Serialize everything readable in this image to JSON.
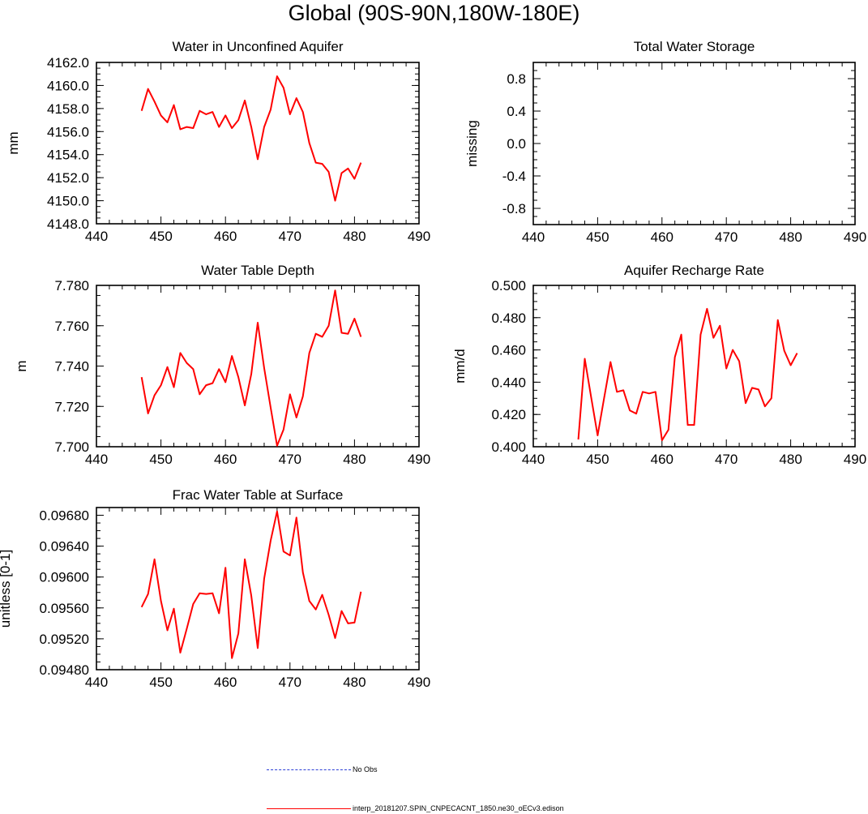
{
  "title": "Global (90S-90N,180W-180E)",
  "colors": {
    "series": "#ff0000",
    "obs": "#2b3fd6",
    "axis": "#000000"
  },
  "legend": [
    {
      "label": "No Obs",
      "color": "#2b3fd6",
      "style": "dashed"
    },
    {
      "label": "interp_20181207.SPIN_CNPECACNT_1850.ne30_oECv3.edison",
      "color": "#ff0000",
      "style": "solid"
    }
  ],
  "chart_data": [
    {
      "type": "line",
      "title": "Water in Unconfined Aquifer",
      "ylabel": "mm",
      "xlim": [
        440,
        490
      ],
      "ylim": [
        4148.0,
        4162.0
      ],
      "xticks": [
        440,
        450,
        460,
        470,
        480,
        490
      ],
      "yticks": [
        4148.0,
        4150.0,
        4152.0,
        4154.0,
        4156.0,
        4158.0,
        4160.0,
        4162.0
      ],
      "ytick_labels": [
        "4148.0",
        "4150.0",
        "4152.0",
        "4154.0",
        "4156.0",
        "4158.0",
        "4160.0",
        "4162.0"
      ],
      "series": [
        {
          "x": [
            447,
            448,
            449,
            450,
            451,
            452,
            453,
            454,
            455,
            456,
            457,
            458,
            459,
            460,
            461,
            462,
            463,
            464,
            465,
            466,
            467,
            468,
            469,
            470,
            471,
            472,
            473,
            474,
            475,
            476,
            477,
            478,
            479,
            480,
            481
          ],
          "values": [
            4157.8,
            4159.7,
            4158.6,
            4157.4,
            4156.8,
            4158.3,
            4156.2,
            4156.4,
            4156.3,
            4157.8,
            4157.5,
            4157.7,
            4156.4,
            4157.4,
            4156.3,
            4157.0,
            4158.7,
            4156.4,
            4153.6,
            4156.4,
            4157.9,
            4160.8,
            4159.8,
            4157.5,
            4158.9,
            4157.7,
            4155.0,
            4153.3,
            4153.2,
            4152.5,
            4150.0,
            4152.4,
            4152.8,
            4151.9,
            4153.3
          ]
        }
      ]
    },
    {
      "type": "line",
      "title": "Total Water Storage",
      "ylabel": "missing",
      "xlim": [
        440,
        490
      ],
      "ylim": [
        -1.0,
        1.0
      ],
      "xticks": [
        440,
        450,
        460,
        470,
        480,
        490
      ],
      "yticks": [
        -0.8,
        -0.4,
        0.0,
        0.4,
        0.8
      ],
      "ytick_labels": [
        "-0.8",
        "-0.4",
        "0.0",
        "0.4",
        "0.8"
      ],
      "series": []
    },
    {
      "type": "line",
      "title": "Water Table Depth",
      "ylabel": "m",
      "xlim": [
        440,
        490
      ],
      "ylim": [
        7.7,
        7.78
      ],
      "xticks": [
        440,
        450,
        460,
        470,
        480,
        490
      ],
      "yticks": [
        7.7,
        7.72,
        7.74,
        7.76,
        7.78
      ],
      "ytick_labels": [
        "7.700",
        "7.720",
        "7.740",
        "7.760",
        "7.780"
      ],
      "series": [
        {
          "x": [
            447,
            448,
            449,
            450,
            451,
            452,
            453,
            454,
            455,
            456,
            457,
            458,
            459,
            460,
            461,
            462,
            463,
            464,
            465,
            466,
            467,
            468,
            469,
            470,
            471,
            472,
            473,
            474,
            475,
            476,
            477,
            478,
            479,
            480,
            481
          ],
          "values": [
            7.7345,
            7.7165,
            7.7255,
            7.7305,
            7.7395,
            7.7295,
            7.7465,
            7.7415,
            7.7385,
            7.726,
            7.7305,
            7.7315,
            7.7385,
            7.732,
            7.745,
            7.7345,
            7.7205,
            7.736,
            7.7615,
            7.739,
            7.7195,
            7.7005,
            7.7085,
            7.726,
            7.7145,
            7.725,
            7.7465,
            7.756,
            7.7545,
            7.76,
            7.7775,
            7.7565,
            7.756,
            7.7635,
            7.7545
          ]
        }
      ]
    },
    {
      "type": "line",
      "title": "Aquifer Recharge Rate",
      "ylabel": "mm/d",
      "xlim": [
        440,
        490
      ],
      "ylim": [
        0.4,
        0.5
      ],
      "xticks": [
        440,
        450,
        460,
        470,
        480,
        490
      ],
      "yticks": [
        0.4,
        0.42,
        0.44,
        0.46,
        0.48,
        0.5
      ],
      "ytick_labels": [
        "0.400",
        "0.420",
        "0.440",
        "0.460",
        "0.480",
        "0.500"
      ],
      "series": [
        {
          "x": [
            447,
            448,
            449,
            450,
            451,
            452,
            453,
            454,
            455,
            456,
            457,
            458,
            459,
            460,
            461,
            462,
            463,
            464,
            465,
            466,
            467,
            468,
            469,
            470,
            471,
            472,
            473,
            474,
            475,
            476,
            477,
            478,
            479,
            480,
            481
          ],
          "values": [
            0.4045,
            0.4545,
            0.4305,
            0.407,
            0.43,
            0.4525,
            0.434,
            0.435,
            0.4225,
            0.4205,
            0.434,
            0.433,
            0.434,
            0.404,
            0.4105,
            0.4555,
            0.4695,
            0.4135,
            0.4135,
            0.4695,
            0.4855,
            0.4675,
            0.475,
            0.4485,
            0.46,
            0.453,
            0.427,
            0.4365,
            0.4355,
            0.425,
            0.43,
            0.4785,
            0.4595,
            0.4505,
            0.458
          ]
        }
      ]
    },
    {
      "type": "line",
      "title": "Frac Water Table at Surface",
      "ylabel": "unitless [0-1]",
      "xlim": [
        440,
        490
      ],
      "ylim": [
        0.0948,
        0.0969
      ],
      "xticks": [
        440,
        450,
        460,
        470,
        480,
        490
      ],
      "yticks": [
        0.0948,
        0.0952,
        0.0956,
        0.096,
        0.0964,
        0.0968
      ],
      "ytick_labels": [
        "0.09480",
        "0.09520",
        "0.09560",
        "0.09600",
        "0.09640",
        "0.09680"
      ],
      "series": [
        {
          "x": [
            447,
            448,
            449,
            450,
            451,
            452,
            453,
            454,
            455,
            456,
            457,
            458,
            459,
            460,
            461,
            462,
            463,
            464,
            465,
            466,
            467,
            468,
            469,
            470,
            471,
            472,
            473,
            474,
            475,
            476,
            477,
            478,
            479,
            480,
            481
          ],
          "values": [
            0.09561,
            0.09578,
            0.09623,
            0.09569,
            0.09531,
            0.09559,
            0.09502,
            0.09533,
            0.09565,
            0.09579,
            0.09578,
            0.09579,
            0.09553,
            0.09612,
            0.09495,
            0.09527,
            0.09623,
            0.09576,
            0.09508,
            0.09598,
            0.09647,
            0.09685,
            0.09633,
            0.09628,
            0.09677,
            0.09606,
            0.09569,
            0.09558,
            0.09577,
            0.09551,
            0.09521,
            0.09556,
            0.0954,
            0.09541,
            0.09581
          ]
        }
      ]
    }
  ]
}
